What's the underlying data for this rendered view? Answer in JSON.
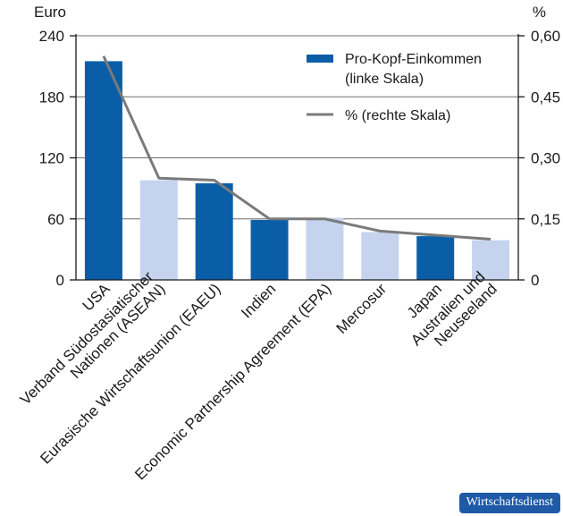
{
  "chart_data": {
    "type": "bar",
    "categories": [
      "USA",
      "Verband Südostasiatischer Nationen (ASEAN)",
      "Eurasische Wirtschaftsunion (EAEU)",
      "Indien",
      "Economic Partnership Agreement (EPA)",
      "Mercosur",
      "Japan",
      "Australien und Neuseeland"
    ],
    "category_lines": [
      [
        "USA"
      ],
      [
        "Verband Südostasiatischer",
        "Nationen (ASEAN)"
      ],
      [
        "Eurasische Wirtschaftsunion (EAEU)"
      ],
      [
        "Indien"
      ],
      [
        "Economic Partnership Agreement (EPA)"
      ],
      [
        "Mercosur"
      ],
      [
        "Japan"
      ],
      [
        "Australien und",
        "Neuseeland"
      ]
    ],
    "series": [
      {
        "name": "Pro-Kopf-Einkommen (linke Skala)",
        "legend_lines": [
          "Pro-Kopf-Einkommen",
          "(linke Skala)"
        ],
        "type": "bar",
        "axis": "left",
        "values": [
          215,
          98,
          95,
          59,
          61,
          47,
          43,
          39
        ],
        "colors": [
          "#0a5ea8",
          "#c5d3ee",
          "#0a5ea8",
          "#0a5ea8",
          "#c5d3ee",
          "#c5d3ee",
          "#0a5ea8",
          "#c5d3ee"
        ]
      },
      {
        "name": "% (rechte Skala)",
        "type": "line",
        "axis": "right",
        "color": "#7a7a7a",
        "values": [
          0.55,
          0.25,
          0.245,
          0.15,
          0.15,
          0.12,
          0.11,
          0.1
        ]
      }
    ],
    "left_axis": {
      "label": "Euro",
      "ylim": [
        0,
        240
      ],
      "ticks": [
        "0",
        "60",
        "120",
        "180",
        "240"
      ]
    },
    "right_axis": {
      "label": "%",
      "ylim": [
        0,
        0.6
      ],
      "ticks": [
        "0",
        "0,15",
        "0,30",
        "0,45",
        "0,60"
      ]
    },
    "grid": true,
    "legend": "top-right",
    "legend_marker_color": "#0a5ea8"
  },
  "brand": "Wirtschaftsdienst"
}
